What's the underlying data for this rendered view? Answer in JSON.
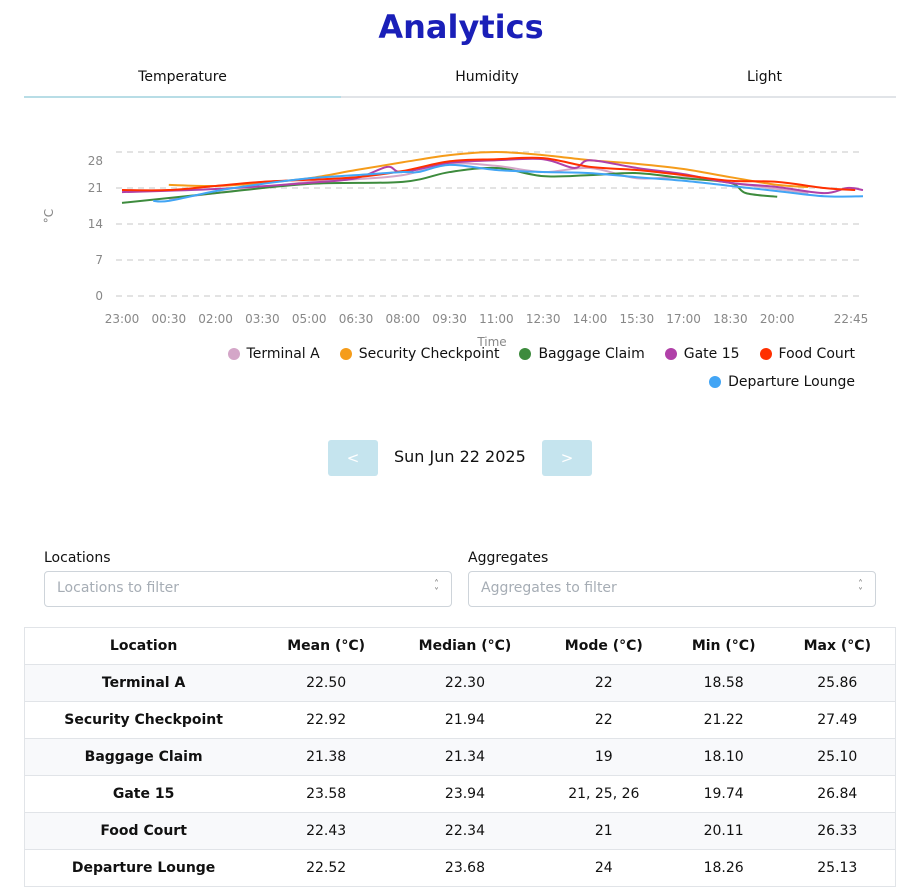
{
  "title": "Analytics",
  "tabs": [
    {
      "label": "Temperature",
      "active": true
    },
    {
      "label": "Humidity"
    },
    {
      "label": "Light"
    }
  ],
  "chart_data": {
    "type": "line",
    "xlabel": "Time",
    "ylabel": "°C",
    "yticks": [
      0,
      7,
      14,
      21,
      28
    ],
    "xticks": [
      "23:00",
      "00:30",
      "02:00",
      "03:30",
      "05:00",
      "06:30",
      "08:00",
      "09:30",
      "11:00",
      "12:30",
      "14:00",
      "15:30",
      "17:00",
      "18:30",
      "20:00",
      "22:45"
    ],
    "ylim": [
      0,
      28
    ],
    "grid": true,
    "legend_position": "bottom-right",
    "series": [
      {
        "name": "Terminal A",
        "color": "#d4a6c8",
        "x": [
          "00:30",
          "02:00",
          "05:00",
          "06:30",
          "08:00",
          "09:30",
          "11:00",
          "12:30",
          "14:00",
          "15:30",
          "17:00",
          "18:30",
          "20:00",
          "21:00"
        ],
        "values": [
          18.9,
          20.0,
          22.2,
          22.7,
          23.5,
          25.7,
          25.3,
          24.1,
          24.9,
          22.9,
          23.1,
          22.0,
          20.8,
          20.0
        ]
      },
      {
        "name": "Security Checkpoint",
        "color": "#f59c1a",
        "x": [
          "00:30",
          "02:00",
          "03:30",
          "05:00",
          "06:30",
          "08:00",
          "09:30",
          "11:00",
          "12:30",
          "14:00",
          "15:30",
          "17:00",
          "18:30",
          "20:00",
          "21:00"
        ],
        "values": [
          21.6,
          21.4,
          22.0,
          22.9,
          24.5,
          26.0,
          27.4,
          28.0,
          27.4,
          26.4,
          25.7,
          24.7,
          23.1,
          21.6,
          21.2
        ]
      },
      {
        "name": "Baggage Claim",
        "color": "#3d8b3d",
        "x": [
          "23:00",
          "02:00",
          "05:00",
          "08:00",
          "09:30",
          "11:00",
          "12:30",
          "14:00",
          "15:30",
          "17:00",
          "18:30",
          "19:00",
          "20:00"
        ],
        "values": [
          18.1,
          20.0,
          21.8,
          22.2,
          24.1,
          24.9,
          23.3,
          23.5,
          23.9,
          22.9,
          22.0,
          20.0,
          19.3
        ]
      },
      {
        "name": "Gate 15",
        "color": "#b040a8",
        "x": [
          "23:00",
          "02:00",
          "05:00",
          "06:30",
          "07:30",
          "08:00",
          "09:30",
          "11:00",
          "12:30",
          "13:30",
          "14:00",
          "15:30",
          "17:00",
          "18:30",
          "20:00",
          "21:30",
          "22:15",
          "22:45"
        ],
        "values": [
          20.2,
          20.8,
          22.0,
          22.9,
          25.1,
          24.1,
          25.9,
          26.4,
          26.6,
          24.9,
          26.4,
          24.9,
          23.7,
          22.0,
          21.2,
          20.0,
          21.0,
          20.6
        ]
      },
      {
        "name": "Food Court",
        "color": "#ff3000",
        "x": [
          "23:00",
          "00:30",
          "02:00",
          "03:30",
          "05:00",
          "06:30",
          "08:00",
          "09:30",
          "11:00",
          "12:30",
          "14:00",
          "15:30",
          "17:00",
          "18:30",
          "20:00",
          "21:30",
          "22:30"
        ],
        "values": [
          20.6,
          20.6,
          21.4,
          22.2,
          22.6,
          23.1,
          24.3,
          26.2,
          26.6,
          26.8,
          25.1,
          24.5,
          23.5,
          22.4,
          22.2,
          21.0,
          20.6
        ]
      },
      {
        "name": "Departure Lounge",
        "color": "#42a5f5",
        "x": [
          "00:00",
          "00:30",
          "02:00",
          "03:30",
          "05:00",
          "06:30",
          "08:00",
          "08:30",
          "09:30",
          "11:00",
          "12:30",
          "14:00",
          "15:30",
          "17:00",
          "18:30",
          "20:00",
          "21:30",
          "22:45"
        ],
        "values": [
          18.5,
          18.5,
          20.4,
          21.8,
          22.9,
          23.5,
          24.1,
          24.1,
          25.5,
          24.5,
          24.1,
          23.9,
          23.1,
          22.4,
          21.4,
          20.4,
          19.4,
          19.4
        ]
      }
    ]
  },
  "nav": {
    "prev_label": "<",
    "next_label": ">",
    "date": "Sun Jun 22 2025"
  },
  "filters": {
    "locations": {
      "label": "Locations",
      "placeholder": "Locations to filter"
    },
    "aggregates": {
      "label": "Aggregates",
      "placeholder": "Aggregates to filter"
    }
  },
  "table": {
    "headers": [
      "Location",
      "Mean (°C)",
      "Median (°C)",
      "Mode (°C)",
      "Min (°C)",
      "Max (°C)"
    ],
    "rows": [
      [
        "Terminal A",
        "22.50",
        "22.30",
        "22",
        "18.58",
        "25.86"
      ],
      [
        "Security Checkpoint",
        "22.92",
        "21.94",
        "22",
        "21.22",
        "27.49"
      ],
      [
        "Baggage Claim",
        "21.38",
        "21.34",
        "19",
        "18.10",
        "25.10"
      ],
      [
        "Gate 15",
        "23.58",
        "23.94",
        "21, 25, 26",
        "19.74",
        "26.84"
      ],
      [
        "Food Court",
        "22.43",
        "22.34",
        "21",
        "20.11",
        "26.33"
      ],
      [
        "Departure Lounge",
        "22.52",
        "23.68",
        "24",
        "18.26",
        "25.13"
      ]
    ]
  }
}
